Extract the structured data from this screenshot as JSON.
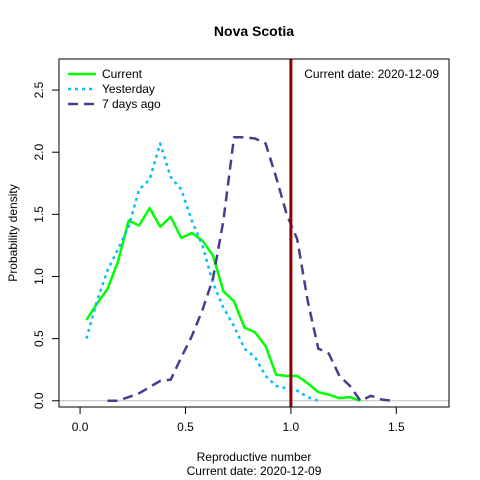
{
  "chart_data": {
    "type": "line",
    "title": "Nova Scotia",
    "xlabel": "Reproductive number",
    "xlabel_sub": "Current date:  2020-12-09",
    "ylabel": "Probability density",
    "xlim": [
      -0.1,
      1.75
    ],
    "ylim": [
      -0.05,
      2.75
    ],
    "xticks": [
      0.0,
      0.5,
      1.0,
      1.5
    ],
    "xtick_labels": [
      "0.0",
      "0.5",
      "1.0",
      "1.5"
    ],
    "yticks": [
      0.0,
      0.5,
      1.0,
      1.5,
      2.0,
      2.5
    ],
    "ytick_labels": [
      "0.0",
      "0.5",
      "1.0",
      "1.5",
      "2.0",
      "2.5"
    ],
    "legend_position": "top-left",
    "annotation": "Current date:  2020-12-09",
    "reference_line": {
      "x": 1.0,
      "color": "#8b0000"
    },
    "baseline": {
      "y": 0.0,
      "color": "#bebebe"
    },
    "series": [
      {
        "name": "Current",
        "color": "#00ff00",
        "style": "solid",
        "x": [
          0.03,
          0.08,
          0.13,
          0.18,
          0.23,
          0.28,
          0.33,
          0.38,
          0.43,
          0.48,
          0.53,
          0.58,
          0.63,
          0.68,
          0.73,
          0.78,
          0.83,
          0.88,
          0.93,
          0.98,
          1.03,
          1.08,
          1.13,
          1.18,
          1.23,
          1.28,
          1.33
        ],
        "y": [
          0.65,
          0.78,
          0.9,
          1.12,
          1.45,
          1.41,
          1.55,
          1.4,
          1.48,
          1.31,
          1.35,
          1.29,
          1.17,
          0.88,
          0.8,
          0.59,
          0.55,
          0.44,
          0.21,
          0.2,
          0.2,
          0.14,
          0.07,
          0.05,
          0.02,
          0.03,
          0.0
        ]
      },
      {
        "name": "Yesterday",
        "color": "#00bfff",
        "style": "dotted",
        "x": [
          0.03,
          0.08,
          0.13,
          0.18,
          0.23,
          0.28,
          0.33,
          0.38,
          0.43,
          0.48,
          0.53,
          0.58,
          0.63,
          0.68,
          0.73,
          0.78,
          0.83,
          0.88,
          0.93,
          0.98,
          1.03,
          1.08,
          1.13
        ],
        "y": [
          0.5,
          0.8,
          1.05,
          1.22,
          1.4,
          1.7,
          1.78,
          2.07,
          1.8,
          1.7,
          1.45,
          1.25,
          0.95,
          0.75,
          0.6,
          0.42,
          0.35,
          0.2,
          0.12,
          0.1,
          0.08,
          0.03,
          0.0
        ]
      },
      {
        "name": "7 days ago",
        "color": "#483d8b",
        "style": "dashed",
        "x": [
          0.13,
          0.18,
          0.23,
          0.28,
          0.33,
          0.38,
          0.43,
          0.48,
          0.53,
          0.58,
          0.63,
          0.68,
          0.73,
          0.78,
          0.83,
          0.88,
          0.93,
          0.98,
          1.03,
          1.08,
          1.13,
          1.18,
          1.23,
          1.28,
          1.33,
          1.38,
          1.43,
          1.48
        ],
        "y": [
          0.0,
          0.0,
          0.03,
          0.06,
          0.11,
          0.16,
          0.17,
          0.35,
          0.52,
          0.73,
          0.98,
          1.45,
          2.12,
          2.12,
          2.11,
          2.07,
          1.8,
          1.5,
          1.3,
          0.8,
          0.42,
          0.38,
          0.2,
          0.12,
          0.0,
          0.04,
          0.01,
          0.0
        ]
      }
    ]
  }
}
